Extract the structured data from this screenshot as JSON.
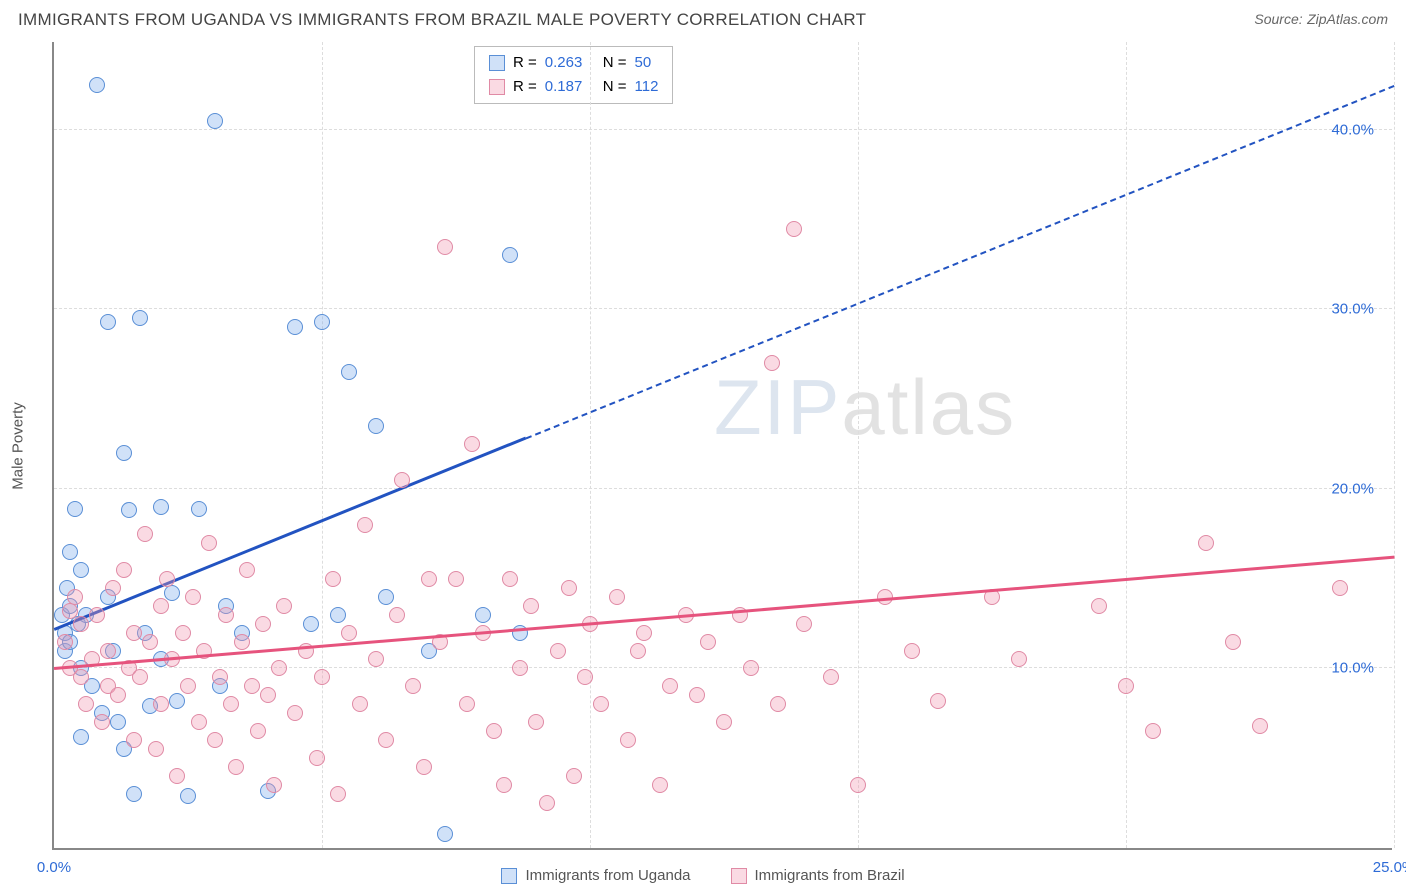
{
  "title": "IMMIGRANTS FROM UGANDA VS IMMIGRANTS FROM BRAZIL MALE POVERTY CORRELATION CHART",
  "source_label": "Source:",
  "source_name": "ZipAtlas.com",
  "y_axis_title": "Male Poverty",
  "watermark_left": "ZIP",
  "watermark_right": "atlas",
  "chart": {
    "type": "scatter",
    "xlim": [
      0,
      25
    ],
    "ylim": [
      0,
      45
    ],
    "x_ticks": [
      0,
      5,
      10,
      15,
      20,
      25
    ],
    "x_tick_labels": [
      "0.0%",
      "",
      "",
      "",
      "",
      "25.0%"
    ],
    "y_ticks": [
      10,
      20,
      30,
      40
    ],
    "y_tick_labels": [
      "10.0%",
      "20.0%",
      "30.0%",
      "40.0%"
    ],
    "tick_color_x_left": "#2e6bd6",
    "tick_color_x_right": "#2e6bd6",
    "tick_color_y": "#2e6bd6",
    "background_color": "#ffffff",
    "grid_color": "#dddddd",
    "dot_radius": 8,
    "dot_border_width": 1,
    "series": [
      {
        "name": "Immigrants from Uganda",
        "fill": "rgba(120,170,235,0.35)",
        "stroke": "#5a8fd6",
        "trend_color": "#2253c1",
        "trend_start": [
          0,
          12.2
        ],
        "trend_end": [
          25,
          42.5
        ],
        "solid_until_x": 8.8,
        "R": "0.263",
        "N": "50",
        "points": [
          [
            0.15,
            13.0
          ],
          [
            0.2,
            12.0
          ],
          [
            0.2,
            11.0
          ],
          [
            0.25,
            14.5
          ],
          [
            0.3,
            13.5
          ],
          [
            0.3,
            16.5
          ],
          [
            0.3,
            11.5
          ],
          [
            0.4,
            18.9
          ],
          [
            0.45,
            12.5
          ],
          [
            0.5,
            6.2
          ],
          [
            0.5,
            10.0
          ],
          [
            0.5,
            15.5
          ],
          [
            0.6,
            13.0
          ],
          [
            0.7,
            9.0
          ],
          [
            0.8,
            42.5
          ],
          [
            0.9,
            7.5
          ],
          [
            1.0,
            29.3
          ],
          [
            1.0,
            14.0
          ],
          [
            1.1,
            11.0
          ],
          [
            1.2,
            7.0
          ],
          [
            1.3,
            5.5
          ],
          [
            1.3,
            22.0
          ],
          [
            1.4,
            18.8
          ],
          [
            1.5,
            3.0
          ],
          [
            1.6,
            29.5
          ],
          [
            1.7,
            12.0
          ],
          [
            1.8,
            7.9
          ],
          [
            2.0,
            10.5
          ],
          [
            2.0,
            19.0
          ],
          [
            2.2,
            14.2
          ],
          [
            2.3,
            8.2
          ],
          [
            2.5,
            2.9
          ],
          [
            2.7,
            18.9
          ],
          [
            3.0,
            40.5
          ],
          [
            3.1,
            9.0
          ],
          [
            3.2,
            13.5
          ],
          [
            3.5,
            12.0
          ],
          [
            4.0,
            3.2
          ],
          [
            4.5,
            29.0
          ],
          [
            4.8,
            12.5
          ],
          [
            5.0,
            29.3
          ],
          [
            5.3,
            13.0
          ],
          [
            5.5,
            26.5
          ],
          [
            6.0,
            23.5
          ],
          [
            6.2,
            14.0
          ],
          [
            7.0,
            11.0
          ],
          [
            7.3,
            0.8
          ],
          [
            8.0,
            13.0
          ],
          [
            8.5,
            33.0
          ],
          [
            8.7,
            12.0
          ]
        ]
      },
      {
        "name": "Immigrants from Brazil",
        "fill": "rgba(240,150,175,0.35)",
        "stroke": "#e08aa5",
        "trend_color": "#e6537d",
        "trend_start": [
          0,
          10.0
        ],
        "trend_end": [
          25,
          16.2
        ],
        "solid_until_x": 25,
        "R": "0.187",
        "N": "112",
        "points": [
          [
            0.2,
            11.5
          ],
          [
            0.3,
            13.2
          ],
          [
            0.3,
            10.0
          ],
          [
            0.4,
            14.0
          ],
          [
            0.5,
            9.5
          ],
          [
            0.5,
            12.5
          ],
          [
            0.6,
            8.0
          ],
          [
            0.7,
            10.5
          ],
          [
            0.8,
            13.0
          ],
          [
            0.9,
            7.0
          ],
          [
            1.0,
            11.0
          ],
          [
            1.0,
            9.0
          ],
          [
            1.1,
            14.5
          ],
          [
            1.2,
            8.5
          ],
          [
            1.3,
            15.5
          ],
          [
            1.4,
            10.0
          ],
          [
            1.5,
            12.0
          ],
          [
            1.5,
            6.0
          ],
          [
            1.6,
            9.5
          ],
          [
            1.7,
            17.5
          ],
          [
            1.8,
            11.5
          ],
          [
            1.9,
            5.5
          ],
          [
            2.0,
            13.5
          ],
          [
            2.0,
            8.0
          ],
          [
            2.1,
            15.0
          ],
          [
            2.2,
            10.5
          ],
          [
            2.3,
            4.0
          ],
          [
            2.4,
            12.0
          ],
          [
            2.5,
            9.0
          ],
          [
            2.6,
            14.0
          ],
          [
            2.7,
            7.0
          ],
          [
            2.8,
            11.0
          ],
          [
            2.9,
            17.0
          ],
          [
            3.0,
            6.0
          ],
          [
            3.1,
            9.5
          ],
          [
            3.2,
            13.0
          ],
          [
            3.3,
            8.0
          ],
          [
            3.4,
            4.5
          ],
          [
            3.5,
            11.5
          ],
          [
            3.6,
            15.5
          ],
          [
            3.7,
            9.0
          ],
          [
            3.8,
            6.5
          ],
          [
            3.9,
            12.5
          ],
          [
            4.0,
            8.5
          ],
          [
            4.1,
            3.5
          ],
          [
            4.2,
            10.0
          ],
          [
            4.3,
            13.5
          ],
          [
            4.5,
            7.5
          ],
          [
            4.7,
            11.0
          ],
          [
            4.9,
            5.0
          ],
          [
            5.0,
            9.5
          ],
          [
            5.2,
            15.0
          ],
          [
            5.3,
            3.0
          ],
          [
            5.5,
            12.0
          ],
          [
            5.7,
            8.0
          ],
          [
            5.8,
            18.0
          ],
          [
            6.0,
            10.5
          ],
          [
            6.2,
            6.0
          ],
          [
            6.4,
            13.0
          ],
          [
            6.5,
            20.5
          ],
          [
            6.7,
            9.0
          ],
          [
            6.9,
            4.5
          ],
          [
            7.0,
            15.0
          ],
          [
            7.2,
            11.5
          ],
          [
            7.3,
            33.5
          ],
          [
            7.5,
            15.0
          ],
          [
            7.7,
            8.0
          ],
          [
            7.8,
            22.5
          ],
          [
            8.0,
            12.0
          ],
          [
            8.2,
            6.5
          ],
          [
            8.4,
            3.5
          ],
          [
            8.5,
            15.0
          ],
          [
            8.7,
            10.0
          ],
          [
            8.9,
            13.5
          ],
          [
            9.0,
            7.0
          ],
          [
            9.2,
            2.5
          ],
          [
            9.4,
            11.0
          ],
          [
            9.6,
            14.5
          ],
          [
            9.7,
            4.0
          ],
          [
            9.9,
            9.5
          ],
          [
            10.0,
            12.5
          ],
          [
            10.2,
            8.0
          ],
          [
            10.5,
            14.0
          ],
          [
            10.7,
            6.0
          ],
          [
            10.9,
            11.0
          ],
          [
            11.0,
            12.0
          ],
          [
            11.3,
            3.5
          ],
          [
            11.5,
            9.0
          ],
          [
            11.8,
            13.0
          ],
          [
            12.0,
            8.5
          ],
          [
            12.2,
            11.5
          ],
          [
            12.5,
            7.0
          ],
          [
            12.8,
            13.0
          ],
          [
            13.0,
            10.0
          ],
          [
            13.4,
            27.0
          ],
          [
            13.5,
            8.0
          ],
          [
            13.8,
            34.5
          ],
          [
            14.0,
            12.5
          ],
          [
            14.5,
            9.5
          ],
          [
            15.0,
            3.5
          ],
          [
            15.5,
            14.0
          ],
          [
            16.0,
            11.0
          ],
          [
            16.5,
            8.2
          ],
          [
            17.5,
            14.0
          ],
          [
            18.0,
            10.5
          ],
          [
            19.5,
            13.5
          ],
          [
            20.0,
            9.0
          ],
          [
            20.5,
            6.5
          ],
          [
            21.5,
            17.0
          ],
          [
            22.0,
            11.5
          ],
          [
            22.5,
            6.8
          ],
          [
            24.0,
            14.5
          ]
        ]
      }
    ]
  },
  "stats_labels": {
    "R": "R =",
    "N": "N ="
  }
}
